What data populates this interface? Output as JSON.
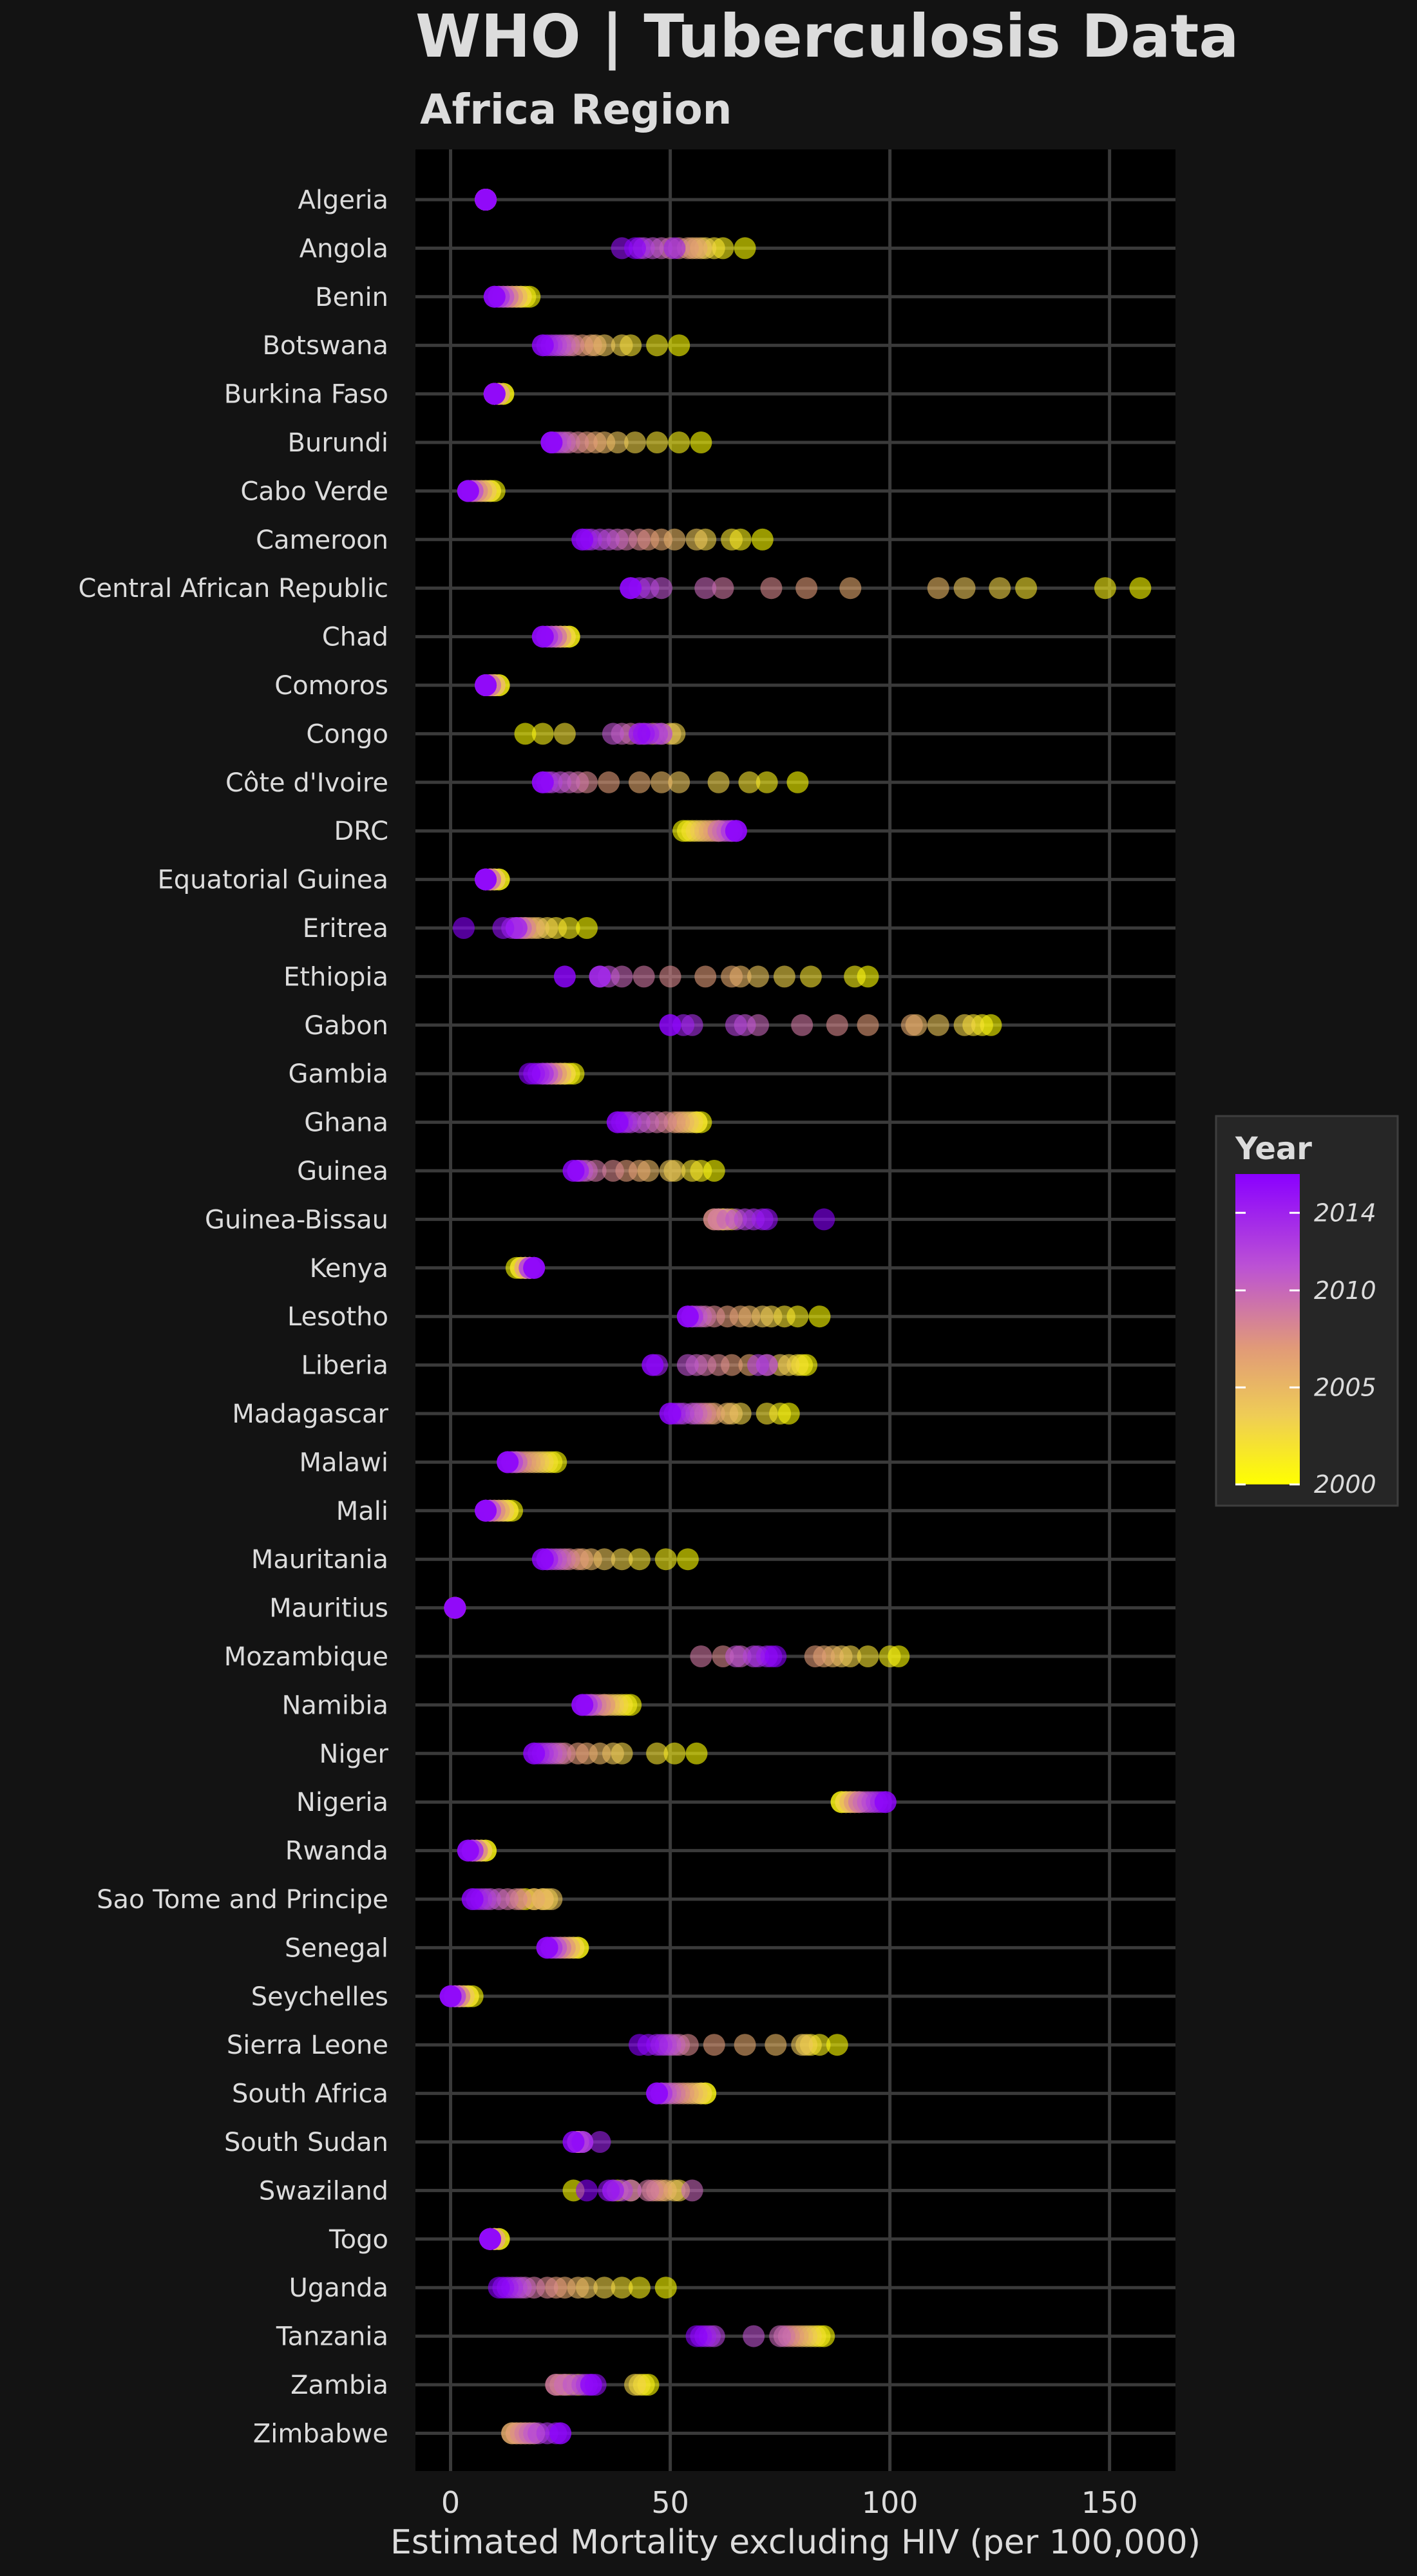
{
  "chart_data": {
    "type": "scatter",
    "title": "WHO | Tuberculosis Data",
    "subtitle": "Africa Region",
    "xlabel": "Estimated Mortality excluding HIV (per 100,000)",
    "ylabel": "",
    "xlim": [
      -8,
      165
    ],
    "x_ticks": [
      0,
      50,
      100,
      150
    ],
    "grid": true,
    "legend": {
      "title": "Year",
      "position": "right",
      "ticks": [
        2000,
        2005,
        2010,
        2014
      ],
      "range": [
        2000,
        2016
      ]
    },
    "colors": {
      "background": "#131313",
      "panel": "#000000",
      "grid": "#3a3a3a",
      "year_2000": "#ffff00",
      "year_2007": "#e19a78",
      "year_2016": "#8a00ff"
    },
    "categories": [
      "Algeria",
      "Angola",
      "Benin",
      "Botswana",
      "Burkina Faso",
      "Burundi",
      "Cabo Verde",
      "Cameroon",
      "Central African Republic",
      "Chad",
      "Comoros",
      "Congo",
      "Côte d'Ivoire",
      "DRC",
      "Equatorial Guinea",
      "Eritrea",
      "Ethiopia",
      "Gabon",
      "Gambia",
      "Ghana",
      "Guinea",
      "Guinea-Bissau",
      "Kenya",
      "Lesotho",
      "Liberia",
      "Madagascar",
      "Malawi",
      "Mali",
      "Mauritania",
      "Mauritius",
      "Mozambique",
      "Namibia",
      "Niger",
      "Nigeria",
      "Rwanda",
      "Sao Tome and Principe",
      "Senegal",
      "Seychelles",
      "Sierra Leone",
      "South Africa",
      "South Sudan",
      "Swaziland",
      "Togo",
      "Uganda",
      "Tanzania",
      "Zambia",
      "Zimbabwe"
    ],
    "series": [
      {
        "country": "Algeria",
        "values": [
          8,
          8,
          8,
          8,
          8,
          8,
          8,
          8,
          8,
          8,
          8,
          8,
          8,
          8,
          8,
          8,
          8
        ]
      },
      {
        "country": "Angola",
        "values": [
          67,
          62,
          60,
          58,
          57,
          55,
          56,
          54,
          52,
          50,
          48,
          46,
          44,
          43,
          51,
          39,
          42
        ]
      },
      {
        "country": "Benin",
        "values": [
          18,
          17,
          16,
          16,
          15,
          15,
          14,
          14,
          13,
          13,
          12,
          12,
          11,
          11,
          10,
          10,
          10
        ]
      },
      {
        "country": "Botswana",
        "values": [
          52,
          47,
          41,
          39,
          35,
          33,
          32,
          30,
          28,
          27,
          26,
          25,
          24,
          23,
          22,
          21,
          21
        ]
      },
      {
        "country": "Burkina Faso",
        "values": [
          12,
          12,
          11,
          11,
          11,
          11,
          11,
          10,
          10,
          10,
          10,
          10,
          10,
          10,
          10,
          10,
          10
        ]
      },
      {
        "country": "Burundi",
        "values": [
          57,
          52,
          47,
          42,
          38,
          35,
          33,
          31,
          29,
          27,
          26,
          25,
          24,
          23,
          23,
          23,
          23
        ]
      },
      {
        "country": "Cabo Verde",
        "values": [
          10,
          9,
          9,
          8,
          8,
          7,
          7,
          6,
          6,
          5,
          5,
          5,
          4,
          4,
          4,
          4,
          4
        ]
      },
      {
        "country": "Cameroon",
        "values": [
          71,
          66,
          64,
          58,
          56,
          51,
          48,
          45,
          43,
          40,
          38,
          36,
          34,
          32,
          31,
          30,
          30
        ]
      },
      {
        "country": "Central African Republic",
        "values": [
          157,
          149,
          131,
          125,
          117,
          111,
          91,
          81,
          73,
          62,
          58,
          48,
          45,
          43,
          41,
          41,
          41
        ]
      },
      {
        "country": "Chad",
        "values": [
          27,
          27,
          26,
          26,
          25,
          25,
          25,
          24,
          24,
          24,
          23,
          23,
          22,
          22,
          21,
          21,
          21
        ]
      },
      {
        "country": "Comoros",
        "values": [
          11,
          11,
          10,
          10,
          10,
          10,
          9,
          9,
          9,
          9,
          8,
          8,
          8,
          8,
          8,
          8,
          8
        ]
      },
      {
        "country": "Congo",
        "values": [
          17,
          21,
          26,
          51,
          50,
          48,
          46,
          44,
          43,
          41,
          39,
          37,
          47,
          48,
          45,
          44,
          43
        ]
      },
      {
        "country": "Côte d'Ivoire",
        "values": [
          79,
          72,
          68,
          61,
          52,
          48,
          43,
          36,
          31,
          29,
          27,
          25,
          23,
          22,
          21,
          21,
          21
        ]
      },
      {
        "country": "DRC",
        "values": [
          53,
          54,
          55,
          56,
          57,
          58,
          59,
          60,
          61,
          61,
          62,
          63,
          64,
          64,
          65,
          65,
          65
        ]
      },
      {
        "country": "Equatorial Guinea",
        "values": [
          11,
          11,
          10,
          10,
          10,
          9,
          9,
          9,
          9,
          9,
          8,
          8,
          8,
          8,
          8,
          8,
          8
        ]
      },
      {
        "country": "Eritrea",
        "values": [
          31,
          27,
          24,
          22,
          20,
          19,
          18,
          17,
          17,
          16,
          16,
          15,
          15,
          14,
          15,
          12,
          3
        ]
      },
      {
        "country": "Ethiopia",
        "values": [
          95,
          92,
          82,
          76,
          70,
          66,
          64,
          58,
          50,
          44,
          39,
          36,
          34,
          34,
          34,
          26,
          26
        ]
      },
      {
        "country": "Gabon",
        "values": [
          123,
          121,
          119,
          117,
          111,
          106,
          105,
          95,
          88,
          80,
          70,
          67,
          65,
          55,
          53,
          50,
          50
        ]
      },
      {
        "country": "Gambia",
        "values": [
          28,
          27,
          26,
          26,
          25,
          25,
          24,
          24,
          23,
          23,
          22,
          22,
          21,
          21,
          20,
          19,
          18
        ]
      },
      {
        "country": "Ghana",
        "values": [
          57,
          56,
          56,
          55,
          54,
          53,
          52,
          51,
          49,
          47,
          45,
          43,
          41,
          40,
          39,
          38,
          38
        ]
      },
      {
        "country": "Guinea",
        "values": [
          60,
          57,
          55,
          51,
          50,
          45,
          43,
          40,
          37,
          33,
          31,
          30,
          29,
          29,
          29,
          28,
          28
        ]
      },
      {
        "country": "Guinea-Bissau",
        "values": [
          64,
          63,
          62,
          62,
          62,
          61,
          61,
          60,
          60,
          61,
          63,
          65,
          67,
          69,
          71,
          72,
          85
        ]
      },
      {
        "country": "Kenya",
        "values": [
          15,
          16,
          16,
          17,
          17,
          17,
          17,
          18,
          18,
          18,
          18,
          18,
          18,
          19,
          19,
          19,
          19
        ]
      },
      {
        "country": "Lesotho",
        "values": [
          84,
          79,
          76,
          73,
          71,
          68,
          66,
          63,
          60,
          58,
          57,
          56,
          55,
          55,
          54,
          54,
          54
        ]
      },
      {
        "country": "Liberia",
        "values": [
          81,
          80,
          79,
          77,
          75,
          72,
          68,
          64,
          61,
          58,
          56,
          54,
          70,
          72,
          47,
          46,
          46
        ]
      },
      {
        "country": "Madagascar",
        "values": [
          77,
          75,
          72,
          66,
          64,
          63,
          60,
          59,
          58,
          57,
          56,
          55,
          53,
          52,
          51,
          50,
          50
        ]
      },
      {
        "country": "Malawi",
        "values": [
          24,
          23,
          22,
          21,
          20,
          19,
          18,
          17,
          16,
          15,
          15,
          14,
          14,
          13,
          13,
          13,
          13
        ]
      },
      {
        "country": "Mali",
        "values": [
          14,
          13,
          13,
          12,
          12,
          11,
          11,
          10,
          10,
          9,
          9,
          9,
          8,
          8,
          8,
          8,
          8
        ]
      },
      {
        "country": "Mauritania",
        "values": [
          54,
          49,
          43,
          39,
          35,
          32,
          30,
          29,
          27,
          26,
          25,
          24,
          23,
          22,
          22,
          21,
          21
        ]
      },
      {
        "country": "Mauritius",
        "values": [
          1,
          1,
          1,
          1,
          1,
          1,
          1,
          1,
          1,
          1,
          1,
          1,
          1,
          1,
          1,
          1,
          1
        ]
      },
      {
        "country": "Mozambique",
        "values": [
          102,
          100,
          95,
          91,
          89,
          87,
          85,
          83,
          62,
          57,
          66,
          65,
          69,
          70,
          72,
          73,
          74
        ]
      },
      {
        "country": "Namibia",
        "values": [
          41,
          40,
          39,
          38,
          37,
          36,
          35,
          35,
          34,
          33,
          32,
          32,
          31,
          31,
          30,
          30,
          30
        ]
      },
      {
        "country": "Niger",
        "values": [
          56,
          51,
          47,
          39,
          37,
          34,
          31,
          29,
          26,
          25,
          24,
          23,
          22,
          21,
          20,
          19,
          19
        ]
      },
      {
        "country": "Nigeria",
        "values": [
          89,
          89,
          90,
          90,
          91,
          91,
          92,
          92,
          93,
          93,
          94,
          95,
          96,
          97,
          98,
          99,
          99
        ]
      },
      {
        "country": "Rwanda",
        "values": [
          8,
          8,
          7,
          7,
          7,
          6,
          6,
          6,
          6,
          5,
          5,
          5,
          5,
          5,
          4,
          4,
          4
        ]
      },
      {
        "country": "Sao Tome and Principe",
        "values": [
          17,
          19,
          21,
          22,
          23,
          21,
          19,
          16,
          15,
          13,
          11,
          9,
          8,
          7,
          6,
          5,
          5
        ]
      },
      {
        "country": "Senegal",
        "values": [
          29,
          29,
          28,
          28,
          27,
          27,
          26,
          26,
          25,
          25,
          24,
          24,
          23,
          23,
          22,
          22,
          22
        ]
      },
      {
        "country": "Seychelles",
        "values": [
          5,
          4,
          4,
          3,
          3,
          2,
          2,
          2,
          2,
          1,
          1,
          1,
          1,
          0,
          0,
          0,
          0
        ]
      },
      {
        "country": "Sierra Leone",
        "values": [
          88,
          84,
          82,
          81,
          80,
          74,
          67,
          60,
          54,
          52,
          51,
          50,
          49,
          48,
          47,
          45,
          43
        ]
      },
      {
        "country": "South Africa",
        "values": [
          58,
          58,
          57,
          57,
          56,
          55,
          54,
          53,
          52,
          51,
          50,
          49,
          48,
          48,
          47,
          47,
          47
        ]
      },
      {
        "country": "South Sudan",
        "values": [
          29,
          29,
          29,
          29,
          29,
          29,
          29,
          29,
          29,
          29,
          29,
          30,
          30,
          30,
          34,
          28,
          28
        ]
      },
      {
        "country": "Swaziland",
        "values": [
          28,
          41,
          38,
          52,
          51,
          49,
          48,
          47,
          46,
          45,
          55,
          41,
          39,
          37,
          37,
          36,
          31
        ]
      },
      {
        "country": "Togo",
        "values": [
          11,
          11,
          10,
          10,
          10,
          10,
          10,
          9,
          9,
          9,
          9,
          9,
          9,
          9,
          9,
          9,
          9
        ]
      },
      {
        "country": "Uganda",
        "values": [
          49,
          43,
          39,
          35,
          31,
          29,
          26,
          24,
          22,
          19,
          17,
          16,
          15,
          14,
          13,
          12,
          11
        ]
      },
      {
        "country": "Tanzania",
        "values": [
          85,
          84,
          83,
          82,
          81,
          80,
          79,
          78,
          77,
          76,
          75,
          69,
          60,
          59,
          58,
          57,
          56
        ]
      },
      {
        "country": "Zambia",
        "values": [
          45,
          44,
          43,
          42,
          29,
          27,
          26,
          25,
          24,
          24,
          26,
          28,
          30,
          31,
          32,
          33,
          32
        ]
      },
      {
        "country": "Zimbabwe",
        "values": [
          19,
          18,
          17,
          16,
          15,
          14,
          14,
          15,
          16,
          17,
          18,
          19,
          20,
          22,
          24,
          25,
          25
        ]
      }
    ]
  }
}
